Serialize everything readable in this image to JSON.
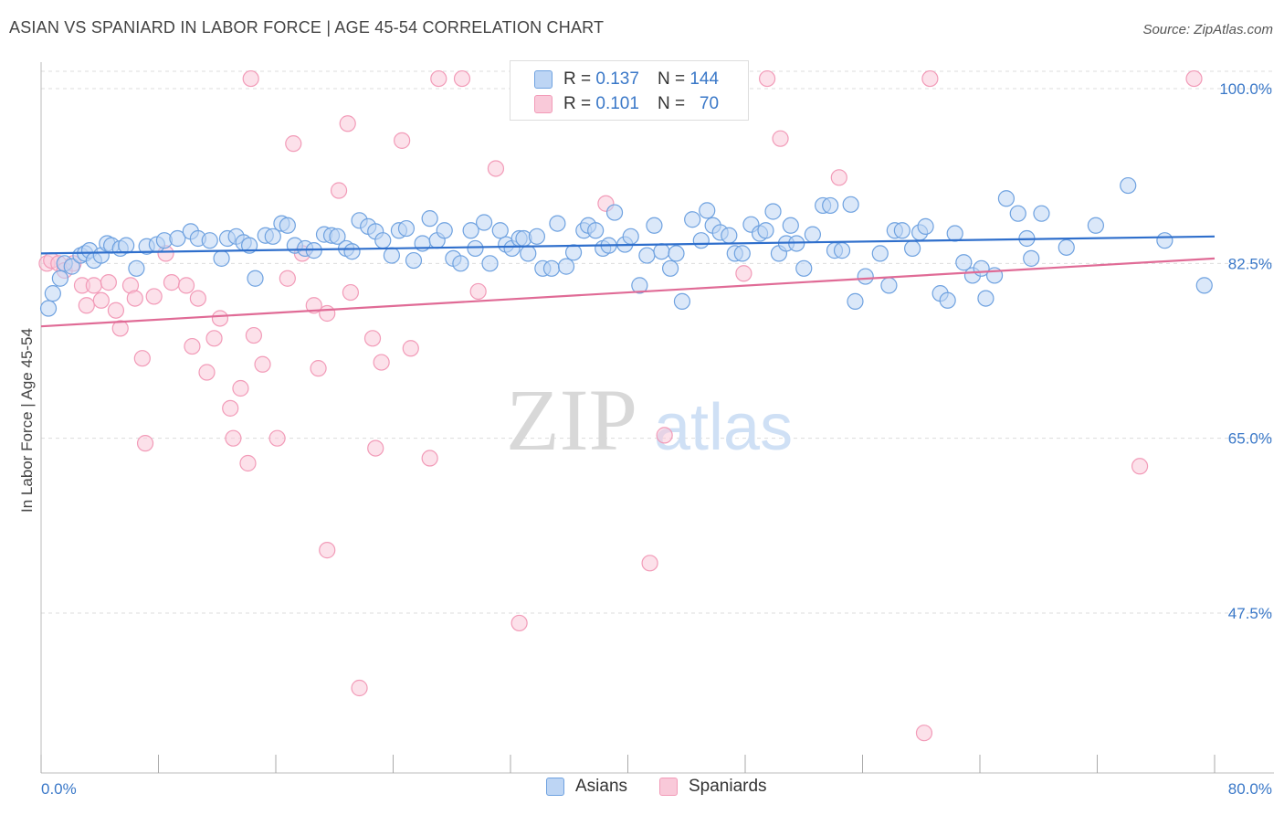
{
  "header": {
    "title": "ASIAN VS SPANIARD IN LABOR FORCE | AGE 45-54 CORRELATION CHART",
    "source": "Source: ZipAtlas.com"
  },
  "legend": {
    "asians": {
      "r_label": "R =",
      "r_value": "0.137",
      "n_label": "N =",
      "n_value": "144"
    },
    "spaniards": {
      "r_label": "R =",
      "r_value": "0.101",
      "n_label": "N =",
      "n_value": "70"
    }
  },
  "bottom_legend": {
    "asians": "Asians",
    "spaniards": "Spaniards"
  },
  "watermark": {
    "zip": "ZIP",
    "atlas": "atlas"
  },
  "chart_data": {
    "type": "scatter",
    "title": "ASIAN VS SPANIARD IN LABOR FORCE | AGE 45-54 CORRELATION CHART",
    "ylabel": "In Labor Force | Age 45-54",
    "xlabel": "",
    "xlim": [
      0,
      80
    ],
    "ylim": [
      30,
      102
    ],
    "x_tick_labels": [
      "0.0%",
      "80.0%"
    ],
    "y_ticks": [
      47.5,
      65.0,
      82.5,
      100.0
    ],
    "y_tick_labels": [
      "47.5%",
      "65.0%",
      "82.5%",
      "100.0%"
    ],
    "grid": true,
    "legend_position": "top-center",
    "colors": {
      "asians": "#6fa2e0",
      "asians_line": "#2f6fcc",
      "spaniards": "#f29bb8",
      "spaniards_line": "#e06b96"
    },
    "series": [
      {
        "name": "Asians",
        "trend": [
          [
            0,
            83.5
          ],
          [
            80,
            85.2
          ]
        ],
        "points": [
          [
            0.5,
            78
          ],
          [
            0.8,
            79.5
          ],
          [
            1.3,
            81
          ],
          [
            1.6,
            82.5
          ],
          [
            2.1,
            82.2
          ],
          [
            2.7,
            83.3
          ],
          [
            3,
            83.5
          ],
          [
            3.3,
            83.8
          ],
          [
            3.6,
            82.8
          ],
          [
            4.1,
            83.3
          ],
          [
            4.5,
            84.5
          ],
          [
            4.8,
            84.3
          ],
          [
            5.4,
            84
          ],
          [
            5.8,
            84.3
          ],
          [
            6.5,
            82
          ],
          [
            7.2,
            84.2
          ],
          [
            7.9,
            84.4
          ],
          [
            8.4,
            84.8
          ],
          [
            9.3,
            85
          ],
          [
            10.2,
            85.7
          ],
          [
            10.7,
            85
          ],
          [
            11.5,
            84.8
          ],
          [
            12.3,
            83
          ],
          [
            12.7,
            85
          ],
          [
            13.3,
            85.2
          ],
          [
            13.8,
            84.6
          ],
          [
            14.2,
            84.3
          ],
          [
            14.6,
            81
          ],
          [
            15.3,
            85.3
          ],
          [
            15.8,
            85.2
          ],
          [
            16.4,
            86.5
          ],
          [
            16.8,
            86.3
          ],
          [
            17.3,
            84.3
          ],
          [
            18,
            84
          ],
          [
            18.6,
            83.8
          ],
          [
            19.3,
            85.4
          ],
          [
            19.8,
            85.3
          ],
          [
            20.2,
            85.2
          ],
          [
            20.8,
            84
          ],
          [
            21.2,
            83.7
          ],
          [
            21.7,
            86.8
          ],
          [
            22.3,
            86.2
          ],
          [
            22.8,
            85.7
          ],
          [
            23.3,
            84.8
          ],
          [
            23.9,
            83.3
          ],
          [
            24.4,
            85.8
          ],
          [
            24.9,
            86
          ],
          [
            25.4,
            82.8
          ],
          [
            26,
            84.5
          ],
          [
            26.5,
            87
          ],
          [
            27,
            84.8
          ],
          [
            27.5,
            85.8
          ],
          [
            28.1,
            83
          ],
          [
            28.6,
            82.5
          ],
          [
            29.3,
            85.8
          ],
          [
            29.6,
            84
          ],
          [
            30.2,
            86.6
          ],
          [
            30.6,
            82.5
          ],
          [
            31.3,
            85.8
          ],
          [
            31.7,
            84.4
          ],
          [
            32.1,
            84
          ],
          [
            32.6,
            85
          ],
          [
            32.9,
            85
          ],
          [
            33.2,
            83.5
          ],
          [
            33.8,
            85.2
          ],
          [
            34.2,
            82
          ],
          [
            34.8,
            82
          ],
          [
            35.2,
            86.5
          ],
          [
            35.8,
            82.2
          ],
          [
            36.3,
            83.6
          ],
          [
            37,
            85.8
          ],
          [
            37.3,
            86.3
          ],
          [
            37.8,
            85.8
          ],
          [
            38.3,
            84
          ],
          [
            38.7,
            84.3
          ],
          [
            39.1,
            87.6
          ],
          [
            39.8,
            84.4
          ],
          [
            40.2,
            85.2
          ],
          [
            40.8,
            80.3
          ],
          [
            41.3,
            83.3
          ],
          [
            41.8,
            86.3
          ],
          [
            42.3,
            83.7
          ],
          [
            42.9,
            82
          ],
          [
            43.3,
            83.5
          ],
          [
            43.7,
            78.7
          ],
          [
            44.4,
            86.9
          ],
          [
            45,
            84.8
          ],
          [
            45.4,
            87.8
          ],
          [
            45.8,
            86.3
          ],
          [
            46.3,
            85.6
          ],
          [
            46.9,
            85.3
          ],
          [
            47.3,
            83.5
          ],
          [
            47.8,
            83.5
          ],
          [
            48.4,
            86.4
          ],
          [
            49,
            85.5
          ],
          [
            49.4,
            85.8
          ],
          [
            49.9,
            87.7
          ],
          [
            50.3,
            83.5
          ],
          [
            50.8,
            84.5
          ],
          [
            51.1,
            86.3
          ],
          [
            51.5,
            84.5
          ],
          [
            52,
            82
          ],
          [
            52.6,
            85.4
          ],
          [
            53.3,
            88.3
          ],
          [
            53.8,
            88.3
          ],
          [
            54.1,
            83.8
          ],
          [
            54.6,
            83.8
          ],
          [
            55.2,
            88.4
          ],
          [
            55.5,
            78.7
          ],
          [
            56.2,
            81.2
          ],
          [
            57.2,
            83.5
          ],
          [
            57.8,
            80.3
          ],
          [
            58.2,
            85.8
          ],
          [
            58.7,
            85.8
          ],
          [
            59.4,
            84
          ],
          [
            59.9,
            85.6
          ],
          [
            60.3,
            86.2
          ],
          [
            61.3,
            79.5
          ],
          [
            61.8,
            78.8
          ],
          [
            62.3,
            85.5
          ],
          [
            62.9,
            82.6
          ],
          [
            63.5,
            81.3
          ],
          [
            64.1,
            82
          ],
          [
            64.4,
            79
          ],
          [
            65,
            81.3
          ],
          [
            65.8,
            89
          ],
          [
            66.6,
            87.5
          ],
          [
            67.2,
            85
          ],
          [
            67.5,
            83
          ],
          [
            68.2,
            87.5
          ],
          [
            69.9,
            84.1
          ],
          [
            71.9,
            86.3
          ],
          [
            74.1,
            90.3
          ],
          [
            76.6,
            84.8
          ],
          [
            79.3,
            80.3
          ]
        ]
      },
      {
        "name": "Spaniards",
        "trend": [
          [
            0,
            76.2
          ],
          [
            80,
            83
          ]
        ],
        "points": [
          [
            0.4,
            82.5
          ],
          [
            0.7,
            82.8
          ],
          [
            1.2,
            82.5
          ],
          [
            1.6,
            81.8
          ],
          [
            2.2,
            82.5
          ],
          [
            2.8,
            80.3
          ],
          [
            3.1,
            78.3
          ],
          [
            3.6,
            80.3
          ],
          [
            4.1,
            78.8
          ],
          [
            4.6,
            80.6
          ],
          [
            5.1,
            77.8
          ],
          [
            5.4,
            76
          ],
          [
            6.1,
            80.3
          ],
          [
            6.4,
            79
          ],
          [
            6.9,
            73
          ],
          [
            7.1,
            64.5
          ],
          [
            7.7,
            79.2
          ],
          [
            8.5,
            83.5
          ],
          [
            8.9,
            80.6
          ],
          [
            9.9,
            80.3
          ],
          [
            10.3,
            74.2
          ],
          [
            10.7,
            79
          ],
          [
            11.3,
            71.6
          ],
          [
            11.8,
            75
          ],
          [
            12.2,
            77
          ],
          [
            12.9,
            68
          ],
          [
            13.1,
            65
          ],
          [
            13.6,
            70
          ],
          [
            14.1,
            62.5
          ],
          [
            14.5,
            75.3
          ],
          [
            15.1,
            72.4
          ],
          [
            16.1,
            65
          ],
          [
            16.8,
            81
          ],
          [
            17.2,
            94.5
          ],
          [
            17.8,
            83.5
          ],
          [
            18.6,
            78.3
          ],
          [
            18.9,
            72
          ],
          [
            19.5,
            77.5
          ],
          [
            19.5,
            53.8
          ],
          [
            20.3,
            89.8
          ],
          [
            20.9,
            96.5
          ],
          [
            21.1,
            79.6
          ],
          [
            21.7,
            40
          ],
          [
            22.6,
            75
          ],
          [
            22.8,
            64
          ],
          [
            23.2,
            72.6
          ],
          [
            24.6,
            94.8
          ],
          [
            25.2,
            74
          ],
          [
            26.5,
            63
          ],
          [
            29.8,
            79.7
          ],
          [
            31,
            92
          ],
          [
            32.6,
            46.5
          ],
          [
            38.5,
            88.5
          ],
          [
            41.5,
            52.5
          ],
          [
            42.5,
            65.3
          ],
          [
            47.9,
            81.5
          ],
          [
            50.4,
            95
          ],
          [
            54.4,
            91.1
          ],
          [
            60.2,
            35.5
          ],
          [
            74.9,
            62.2
          ],
          [
            14.3,
            101
          ],
          [
            28.7,
            101
          ],
          [
            37,
            101
          ],
          [
            46.3,
            101
          ],
          [
            49.5,
            101
          ],
          [
            60.6,
            101
          ],
          [
            78.6,
            101
          ],
          [
            35.3,
            101
          ],
          [
            27.1,
            101
          ]
        ]
      }
    ]
  }
}
